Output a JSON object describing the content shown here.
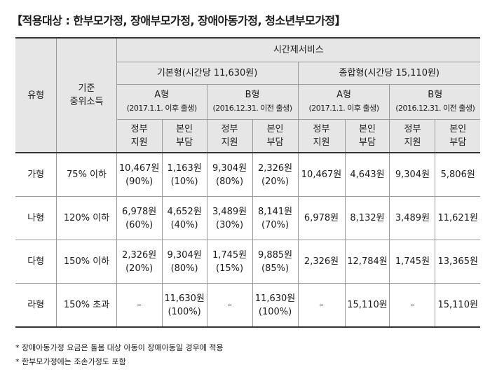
{
  "title": "【적용대상 : 한부모가정, 장애부모가정, 장애아동가정, 청소년부모가정】",
  "header": {
    "type": "유형",
    "income": [
      "기준",
      "중위소득"
    ],
    "service": "시간제서비스",
    "basic": "기본형(시간당 11,630원)",
    "comprehensive": "종합형(시간당 15,110원)",
    "type_a": "A형",
    "type_a_sub": "(2017.1.1. 이후 출생)",
    "type_b": "B형",
    "type_b_sub": "(2016.12.31. 이전 출생)",
    "gov": [
      "정부",
      "지원"
    ],
    "self": [
      "본인",
      "부담"
    ]
  },
  "rows": [
    {
      "type": "가형",
      "income": "75% 이하",
      "cells": [
        [
          "10,467원",
          "(90%)"
        ],
        [
          "1,163원",
          "(10%)"
        ],
        [
          "9,304원",
          "(80%)"
        ],
        [
          "2,326원",
          "(20%)"
        ],
        [
          "10,467원"
        ],
        [
          "4,643원"
        ],
        [
          "9,304원"
        ],
        [
          "5,806원"
        ]
      ]
    },
    {
      "type": "나형",
      "income": "120% 이하",
      "cells": [
        [
          "6,978원",
          "(60%)"
        ],
        [
          "4,652원",
          "(40%)"
        ],
        [
          "3,489원",
          "(30%)"
        ],
        [
          "8,141원",
          "(70%)"
        ],
        [
          "6,978원"
        ],
        [
          "8,132원"
        ],
        [
          "3,489원"
        ],
        [
          "11,621원"
        ]
      ]
    },
    {
      "type": "다형",
      "income": "150% 이하",
      "cells": [
        [
          "2,326원",
          "(20%)"
        ],
        [
          "9,304원",
          "(80%)"
        ],
        [
          "1,745원",
          "(15%)"
        ],
        [
          "9,885원",
          "(85%)"
        ],
        [
          "2,326원"
        ],
        [
          "12,784원"
        ],
        [
          "1,745원"
        ],
        [
          "13,365원"
        ]
      ]
    },
    {
      "type": "라형",
      "income": "150% 초과",
      "cells": [
        [
          "–"
        ],
        [
          "11,630원",
          "(100%)"
        ],
        [
          "–"
        ],
        [
          "11,630원",
          "(100%)"
        ],
        [
          "–"
        ],
        [
          "15,110원"
        ],
        [
          "–"
        ],
        [
          "15,110원"
        ]
      ]
    }
  ],
  "notes": [
    "* 장애아동가정 요금은 돌봄 대상 아동이 장애아동일 경우에 적용",
    "* 한부모가정에는 조손가정도 포함"
  ]
}
